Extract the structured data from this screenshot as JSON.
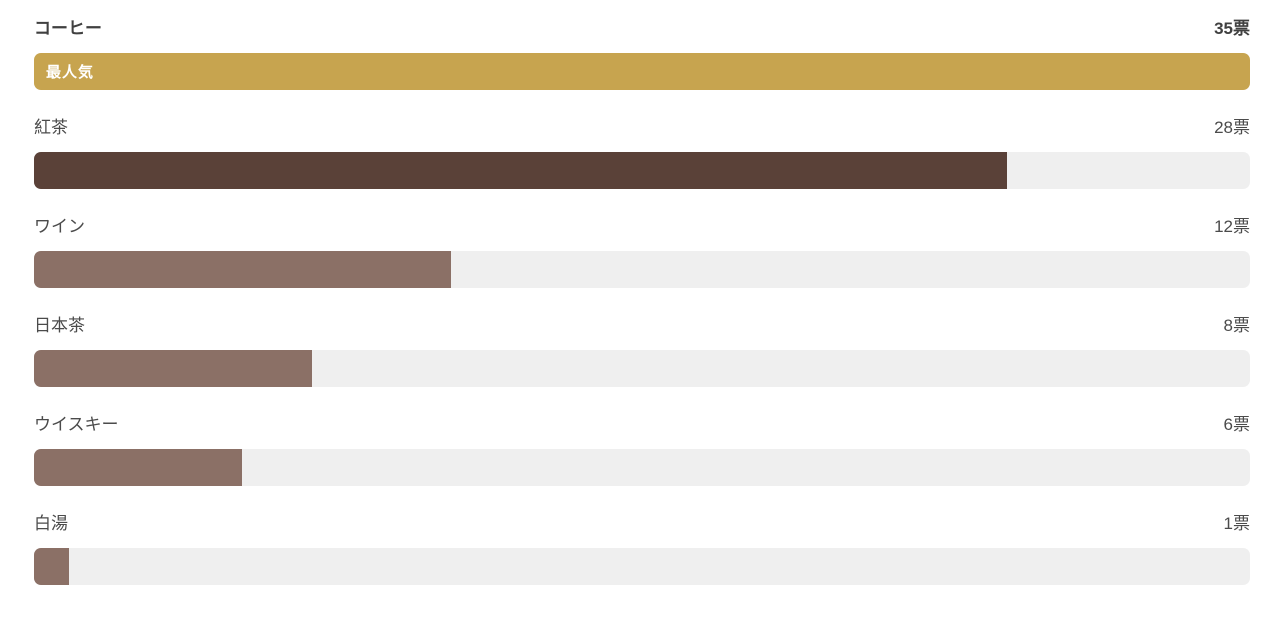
{
  "poll": {
    "unit_suffix": "票",
    "max_votes": 35,
    "colors": {
      "top_bar": "#c7a44f",
      "second_bar": "#5a4138",
      "default_bar": "#8b7066",
      "track": "#efefef",
      "label_text": "#4b4b4b",
      "badge_text": "#ffffff"
    },
    "rows": [
      {
        "label": "コーヒー",
        "votes": 35,
        "votes_label": "35票",
        "badge": "最人気",
        "bar_color": "#c7a44f",
        "highlight": true
      },
      {
        "label": "紅茶",
        "votes": 28,
        "votes_label": "28票",
        "bar_color": "#5a4138",
        "highlight": false
      },
      {
        "label": "ワイン",
        "votes": 12,
        "votes_label": "12票",
        "bar_color": "#8b7066",
        "highlight": false
      },
      {
        "label": "日本茶",
        "votes": 8,
        "votes_label": "8票",
        "bar_color": "#8b7066",
        "highlight": false
      },
      {
        "label": "ウイスキー",
        "votes": 6,
        "votes_label": "6票",
        "bar_color": "#8b7066",
        "highlight": false
      },
      {
        "label": "白湯",
        "votes": 1,
        "votes_label": "1票",
        "bar_color": "#8b7066",
        "highlight": false
      }
    ]
  },
  "chart_data": {
    "type": "bar",
    "orientation": "horizontal",
    "categories": [
      "コーヒー",
      "紅茶",
      "ワイン",
      "日本茶",
      "ウイスキー",
      "白湯"
    ],
    "values": [
      35,
      28,
      12,
      8,
      6,
      1
    ],
    "value_labels": [
      "35票",
      "28票",
      "12票",
      "8票",
      "6票",
      "1票"
    ],
    "annotations": [
      {
        "category": "コーヒー",
        "text": "最人気"
      }
    ],
    "title": "",
    "xlabel": "",
    "ylabel": "",
    "xlim": [
      0,
      35
    ],
    "grid": false,
    "legend": false,
    "bar_colors": [
      "#c7a44f",
      "#5a4138",
      "#8b7066",
      "#8b7066",
      "#8b7066",
      "#8b7066"
    ],
    "track_color": "#efefef"
  }
}
